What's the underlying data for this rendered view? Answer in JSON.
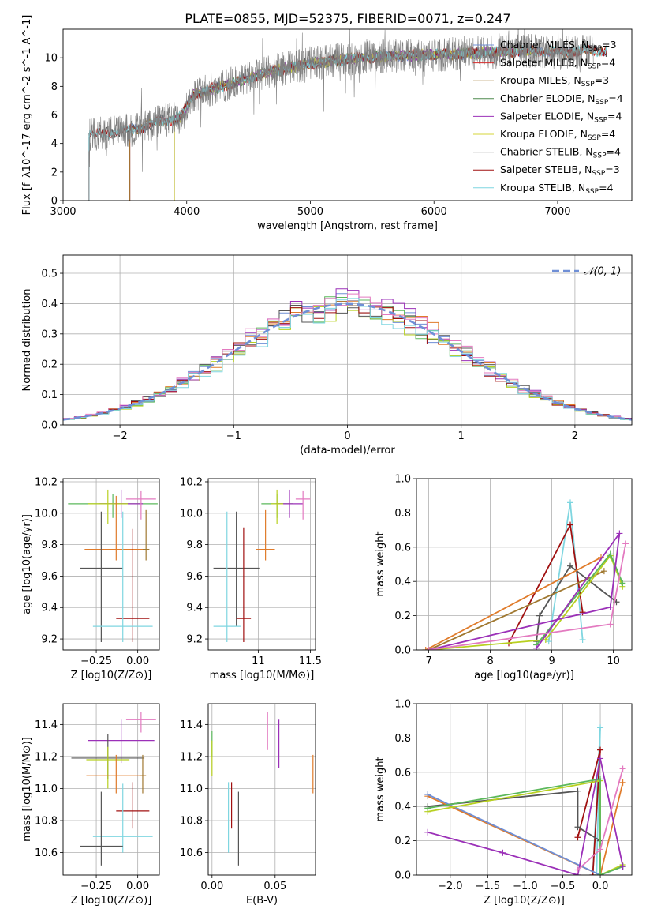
{
  "title": "PLATE=0855, MJD=52375, FIBERID=0071, z=0.247",
  "colors": {
    "miles_chabrier": "#6f8fd6",
    "miles_salpeter": "#d62a2a",
    "miles_kroupa": "#a07830",
    "elodie_chabrier": "#4f8a4f",
    "elodie_salpeter": "#9b30b8",
    "elodie_kroupa": "#d6d63a",
    "stelib_chabrier": "#555555",
    "stelib_salpeter": "#a01010",
    "stelib_kroupa": "#7fd6e0",
    "orange": "#e07b2a",
    "pink": "#e37ac0",
    "olive": "#b8d020",
    "green": "#5cb85c",
    "data_gray": "#808080",
    "normal": "#6f8fd6"
  },
  "chart_data": [
    {
      "id": "spectrum",
      "type": "line",
      "xlabel": "wavelength [Angstrom, rest frame]",
      "ylabel": "Flux [f_λ10^-17 erg cm^-2 s^-1 A^-1]",
      "xlim": [
        3000,
        7600
      ],
      "ylim": [
        0,
        12
      ],
      "xticks": [
        3000,
        4000,
        5000,
        6000,
        7000
      ],
      "yticks": [
        0,
        2,
        4,
        6,
        8,
        10
      ],
      "grid": false,
      "legend_position": "top-right",
      "data_range": [
        3210,
        7290
      ],
      "continuum_knots": [
        [
          3210,
          4.6
        ],
        [
          3400,
          4.8
        ],
        [
          3600,
          5.0
        ],
        [
          3800,
          5.6
        ],
        [
          3950,
          5.8
        ],
        [
          4050,
          7.4
        ],
        [
          4200,
          7.8
        ],
        [
          4400,
          8.3
        ],
        [
          4700,
          9.1
        ],
        [
          5000,
          9.6
        ],
        [
          5300,
          9.9
        ],
        [
          5600,
          10.1
        ],
        [
          6000,
          10.2
        ],
        [
          6300,
          10.3
        ],
        [
          6700,
          10.5
        ],
        [
          7000,
          10.4
        ],
        [
          7290,
          10.5
        ]
      ],
      "series": [
        {
          "name": "Chabrier MILES, N_SSP=3",
          "color_key": "miles_chabrier",
          "start": 3540,
          "end": 7400
        },
        {
          "name": "Salpeter MILES, N_SSP=4",
          "color_key": "miles_salpeter",
          "start": 3540,
          "end": 7400
        },
        {
          "name": "Kroupa MILES, N_SSP=3",
          "color_key": "miles_kroupa",
          "start": 3540,
          "end": 7400
        },
        {
          "name": "Chabrier ELODIE, N_SSP=4",
          "color_key": "elodie_chabrier",
          "start": 3900,
          "end": 6800
        },
        {
          "name": "Salpeter ELODIE, N_SSP=4",
          "color_key": "elodie_salpeter",
          "start": 3900,
          "end": 6800
        },
        {
          "name": "Kroupa ELODIE, N_SSP=4",
          "color_key": "elodie_kroupa",
          "start": 3900,
          "end": 6800
        },
        {
          "name": "Chabrier STELIB, N_SSP=4",
          "color_key": "stelib_chabrier",
          "start": 3210,
          "end": 7400
        },
        {
          "name": "Salpeter STELIB, N_SSP=3",
          "color_key": "stelib_salpeter",
          "start": 3210,
          "end": 7400
        },
        {
          "name": "Kroupa STELIB, N_SSP=4",
          "color_key": "stelib_kroupa",
          "start": 3210,
          "end": 7400
        }
      ]
    },
    {
      "id": "residuals",
      "type": "histogram",
      "xlabel": "(data-model)/error",
      "ylabel": "Normed distribution",
      "xlim": [
        -2.5,
        2.5
      ],
      "ylim": [
        0,
        0.56
      ],
      "xticks": [
        -2,
        -1,
        0,
        1,
        2
      ],
      "yticks": [
        0.0,
        0.1,
        0.2,
        0.3,
        0.4,
        0.5
      ],
      "grid": true,
      "legend_position": "top-right",
      "legend_label": "𝒩(0, 1)",
      "bin_width": 0.1,
      "bin_start": -2.5,
      "bins_per_series_offsets": [
        0.0,
        0.02,
        -0.02,
        0.03,
        -0.03,
        0.01,
        -0.01,
        0.04,
        -0.04
      ],
      "series_colors": [
        "miles_chabrier",
        "orange",
        "green",
        "elodie_salpeter",
        "olive",
        "stelib_chabrier",
        "stelib_salpeter",
        "pink",
        "stelib_kroupa"
      ]
    },
    {
      "id": "age_vs_Z",
      "type": "errorbar",
      "xlabel": "Z [log10(Z/Z⊙)]",
      "ylabel": "age  [log10(age/yr)]",
      "xlim": [
        -0.45,
        0.13
      ],
      "ylim": [
        9.13,
        10.22
      ],
      "xticks": [
        -0.25,
        0.0
      ],
      "xticklabels": [
        "−0.25",
        "0.00"
      ],
      "yticks": [
        9.2,
        9.4,
        9.6,
        9.8,
        10.0,
        10.2
      ],
      "grid": true,
      "points": [
        {
          "x": -0.15,
          "y": 10.06,
          "xerr": 0.27,
          "y_lo": 9.97,
          "y_hi": 10.12,
          "color": "green"
        },
        {
          "x": -0.1,
          "y": 10.06,
          "xerr": 0.13,
          "y_lo": 9.97,
          "y_hi": 10.15,
          "color": "elodie_salpeter"
        },
        {
          "x": 0.02,
          "y": 10.09,
          "xerr": 0.09,
          "y_lo": 9.96,
          "y_hi": 10.14,
          "color": "pink"
        },
        {
          "x": -0.18,
          "y": 10.06,
          "xerr": 0.12,
          "y_lo": 9.93,
          "y_hi": 10.15,
          "color": "olive"
        },
        {
          "x": -0.13,
          "y": 9.77,
          "xerr": 0.19,
          "y_lo": 9.7,
          "y_hi": 10.11,
          "color": "orange"
        },
        {
          "x": 0.05,
          "y": 9.77,
          "xerr": 0.02,
          "y_lo": 9.7,
          "y_hi": 10.02,
          "color": "miles_kroupa"
        },
        {
          "x": -0.22,
          "y": 9.65,
          "xerr": 0.13,
          "y_lo": 9.18,
          "y_hi": 10.01,
          "color": "stelib_chabrier"
        },
        {
          "x": -0.03,
          "y": 9.33,
          "xerr": 0.1,
          "y_lo": 9.18,
          "y_hi": 9.9,
          "color": "stelib_salpeter"
        },
        {
          "x": -0.09,
          "y": 9.28,
          "xerr": 0.18,
          "y_lo": 9.18,
          "y_hi": 10.01,
          "color": "stelib_kroupa"
        }
      ]
    },
    {
      "id": "age_vs_mass",
      "type": "errorbar",
      "xlabel": "mass [log10(M/M⊙)]",
      "xlim": [
        10.52,
        11.55
      ],
      "ylim": [
        9.13,
        10.22
      ],
      "xticks": [
        10.5,
        11.0,
        11.5
      ],
      "yticks": [
        9.2,
        9.4,
        9.6,
        9.8,
        10.0,
        10.2
      ],
      "grid": true,
      "points": [
        {
          "x": 11.18,
          "y": 10.06,
          "xerr": 0.15,
          "y_lo": 9.97,
          "y_hi": 10.12,
          "color": "green"
        },
        {
          "x": 11.3,
          "y": 10.06,
          "xerr": 0.13,
          "y_lo": 9.97,
          "y_hi": 10.15,
          "color": "elodie_salpeter"
        },
        {
          "x": 11.43,
          "y": 10.09,
          "xerr": 0.07,
          "y_lo": 9.96,
          "y_hi": 10.14,
          "color": "pink"
        },
        {
          "x": 11.18,
          "y": 10.06,
          "xerr": 0.06,
          "y_lo": 9.93,
          "y_hi": 10.15,
          "color": "olive"
        },
        {
          "x": 11.07,
          "y": 9.77,
          "xerr": 0.09,
          "y_lo": 9.7,
          "y_hi": 10.02,
          "color": "orange"
        },
        {
          "x": 10.79,
          "y": 9.65,
          "xerr": 0.22,
          "y_lo": 9.28,
          "y_hi": 10.01,
          "color": "stelib_chabrier"
        },
        {
          "x": 10.86,
          "y": 9.33,
          "xerr": 0.07,
          "y_lo": 9.18,
          "y_hi": 9.91,
          "color": "stelib_salpeter"
        },
        {
          "x": 10.7,
          "y": 9.28,
          "xerr": 0.13,
          "y_lo": 9.18,
          "y_hi": 10.01,
          "color": "stelib_kroupa"
        }
      ]
    },
    {
      "id": "weight_vs_age",
      "type": "line",
      "xlabel": "age  [log10(age/yr)]",
      "ylabel": "mass weight",
      "xlim": [
        6.8,
        10.3
      ],
      "ylim": [
        0,
        1
      ],
      "xticks": [
        7,
        8,
        9,
        10
      ],
      "yticks": [
        0.0,
        0.2,
        0.4,
        0.6,
        0.8,
        1.0
      ],
      "grid": true,
      "series": [
        {
          "color": "stelib_kroupa",
          "points": [
            [
              8.95,
              0.05
            ],
            [
              9.3,
              0.86
            ],
            [
              9.5,
              0.06
            ]
          ]
        },
        {
          "color": "stelib_salpeter",
          "points": [
            [
              8.3,
              0.04
            ],
            [
              9.3,
              0.73
            ],
            [
              9.5,
              0.22
            ]
          ]
        },
        {
          "color": "stelib_chabrier",
          "points": [
            [
              8.75,
              0.05
            ],
            [
              8.8,
              0.2
            ],
            [
              9.3,
              0.49
            ],
            [
              10.05,
              0.28
            ]
          ]
        },
        {
          "color": "orange",
          "points": [
            [
              6.95,
              0.0
            ],
            [
              9.8,
              0.54
            ]
          ]
        },
        {
          "color": "miles_kroupa",
          "points": [
            [
              7.0,
              0.0
            ],
            [
              9.85,
              0.46
            ]
          ]
        },
        {
          "color": "olive",
          "points": [
            [
              7.0,
              0.0
            ],
            [
              8.9,
              0.06
            ],
            [
              9.95,
              0.55
            ],
            [
              10.15,
              0.37
            ]
          ]
        },
        {
          "color": "green",
          "points": [
            [
              8.75,
              0.03
            ],
            [
              9.95,
              0.56
            ],
            [
              10.15,
              0.39
            ]
          ]
        },
        {
          "color": "elodie_salpeter",
          "points": [
            [
              8.75,
              0.01
            ],
            [
              10.1,
              0.68
            ],
            [
              9.95,
              0.25
            ],
            [
              7.0,
              0.0
            ]
          ]
        },
        {
          "color": "pink",
          "points": [
            [
              7.0,
              0.0
            ],
            [
              9.95,
              0.15
            ],
            [
              10.2,
              0.62
            ]
          ]
        }
      ]
    },
    {
      "id": "mass_vs_Z",
      "type": "errorbar",
      "xlabel": "Z [log10(Z/Z⊙)]",
      "ylabel": "mass [log10(M/M⊙)]",
      "xlim": [
        -0.45,
        0.13
      ],
      "ylim": [
        10.46,
        11.53
      ],
      "xticks": [
        -0.25,
        0.0
      ],
      "xticklabels": [
        "−0.25",
        "0.00"
      ],
      "yticks": [
        10.6,
        10.8,
        11.0,
        11.2,
        11.4
      ],
      "grid": true,
      "points": [
        {
          "x": 0.02,
          "y": 11.43,
          "xerr": 0.09,
          "y_lo": 11.35,
          "y_hi": 11.48,
          "color": "pink"
        },
        {
          "x": -0.1,
          "y": 11.3,
          "xerr": 0.2,
          "y_lo": 11.16,
          "y_hi": 11.43,
          "color": "elodie_salpeter"
        },
        {
          "x": -0.18,
          "y": 11.19,
          "xerr": 0.22,
          "y_lo": 11.06,
          "y_hi": 11.34,
          "color": "stelib_chabrier"
        },
        {
          "x": -0.18,
          "y": 11.18,
          "xerr": 0.13,
          "y_lo": 11.0,
          "y_hi": 11.26,
          "color": "olive"
        },
        {
          "x": -0.13,
          "y": 11.08,
          "xerr": 0.18,
          "y_lo": 10.97,
          "y_hi": 11.21,
          "color": "orange"
        },
        {
          "x": 0.03,
          "y": 11.08,
          "xerr": 0.02,
          "y_lo": 10.97,
          "y_hi": 11.21,
          "color": "miles_kroupa"
        },
        {
          "x": -0.03,
          "y": 10.86,
          "xerr": 0.1,
          "y_lo": 10.75,
          "y_hi": 11.04,
          "color": "stelib_salpeter"
        },
        {
          "x": -0.09,
          "y": 10.7,
          "xerr": 0.18,
          "y_lo": 10.6,
          "y_hi": 11.03,
          "color": "stelib_kroupa"
        },
        {
          "x": -0.22,
          "y": 10.64,
          "xerr": 0.13,
          "y_lo": 10.52,
          "y_hi": 10.98,
          "color": "stelib_chabrier"
        }
      ]
    },
    {
      "id": "mass_vs_ebv",
      "type": "errorbar",
      "xlabel": "E(B-V)",
      "xlim": [
        -0.003,
        0.082
      ],
      "ylim": [
        10.46,
        11.53
      ],
      "xticks": [
        0.0,
        0.05
      ],
      "xticklabels": [
        "0.00",
        "0.05"
      ],
      "yticks": [
        10.6,
        10.8,
        11.0,
        11.2,
        11.4
      ],
      "grid": true,
      "points": [
        {
          "x": 0.0,
          "y": 11.28,
          "y_lo": 11.2,
          "y_hi": 11.36,
          "color": "green"
        },
        {
          "x": 0.0,
          "y": 11.19,
          "y_lo": 11.08,
          "y_hi": 11.3,
          "color": "olive"
        },
        {
          "x": 0.013,
          "y": 10.85,
          "y_lo": 10.6,
          "y_hi": 11.04,
          "color": "stelib_kroupa"
        },
        {
          "x": 0.0155,
          "y": 10.9,
          "y_lo": 10.75,
          "y_hi": 11.04,
          "color": "stelib_salpeter"
        },
        {
          "x": 0.021,
          "y": 10.77,
          "y_lo": 10.52,
          "y_hi": 10.98,
          "color": "stelib_chabrier"
        },
        {
          "x": 0.044,
          "y": 11.36,
          "y_lo": 11.24,
          "y_hi": 11.48,
          "color": "pink"
        },
        {
          "x": 0.053,
          "y": 11.28,
          "y_lo": 11.13,
          "y_hi": 11.43,
          "color": "elodie_salpeter"
        },
        {
          "x": 0.08,
          "y": 11.09,
          "y_lo": 10.97,
          "y_hi": 11.21,
          "color": "orange"
        }
      ]
    },
    {
      "id": "weight_vs_Z",
      "type": "line",
      "xlabel": "Z [log10(Z/Z⊙)]",
      "ylabel": "mass weight",
      "xlim": [
        -2.45,
        0.42
      ],
      "ylim": [
        0,
        1
      ],
      "xticks": [
        -2.0,
        -1.5,
        -1.0,
        -0.5,
        0.0
      ],
      "xticklabels": [
        "−2.0",
        "−1.5",
        "−1.0",
        "−0.5",
        "0.0"
      ],
      "yticks": [
        0.0,
        0.2,
        0.4,
        0.6,
        0.8,
        1.0
      ],
      "grid": true,
      "series": [
        {
          "color": "stelib_kroupa",
          "points": [
            [
              -0.05,
              0.0
            ],
            [
              0.0,
              0.86
            ],
            [
              -0.1,
              0.0
            ]
          ]
        },
        {
          "color": "stelib_salpeter",
          "points": [
            [
              -0.3,
              0.22
            ],
            [
              0.0,
              0.73
            ],
            [
              -0.1,
              0.0
            ]
          ]
        },
        {
          "color": "stelib_chabrier",
          "points": [
            [
              -2.3,
              0.4
            ],
            [
              -0.3,
              0.49
            ],
            [
              -0.3,
              0.28
            ],
            [
              0.0,
              0.2
            ]
          ]
        },
        {
          "color": "orange",
          "points": [
            [
              -2.3,
              0.46
            ],
            [
              0.0,
              0.0
            ],
            [
              0.3,
              0.54
            ]
          ]
        },
        {
          "color": "miles_chabrier",
          "points": [
            [
              -2.3,
              0.47
            ],
            [
              -0.0,
              0.0
            ],
            [
              0.3,
              0.05
            ]
          ]
        },
        {
          "color": "olive",
          "points": [
            [
              -2.3,
              0.37
            ],
            [
              0.0,
              0.55
            ],
            [
              0.0,
              0.0
            ],
            [
              0.3,
              0.06
            ]
          ]
        },
        {
          "color": "green",
          "points": [
            [
              -2.3,
              0.39
            ],
            [
              0.0,
              0.56
            ],
            [
              0.0,
              0.0
            ],
            [
              0.3,
              0.05
            ]
          ]
        },
        {
          "color": "elodie_salpeter",
          "points": [
            [
              -2.3,
              0.25
            ],
            [
              -1.3,
              0.13
            ],
            [
              -0.3,
              0.0
            ],
            [
              0.0,
              0.68
            ],
            [
              0.3,
              0.05
            ]
          ]
        },
        {
          "color": "pink",
          "points": [
            [
              -0.3,
              0.03
            ],
            [
              0.0,
              0.15
            ],
            [
              0.3,
              0.62
            ]
          ]
        }
      ]
    }
  ]
}
